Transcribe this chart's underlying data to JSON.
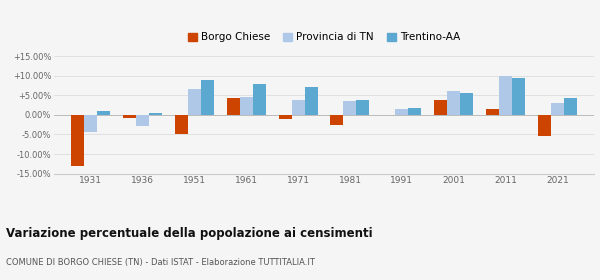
{
  "years": [
    1931,
    1936,
    1951,
    1961,
    1971,
    1981,
    1991,
    2001,
    2011,
    2021
  ],
  "borgo_chiese": [
    -13.0,
    -0.8,
    -4.8,
    4.2,
    -1.0,
    -2.5,
    0.0,
    3.7,
    1.5,
    -5.5
  ],
  "provincia_tn": [
    -4.5,
    -2.8,
    6.5,
    4.5,
    3.8,
    3.5,
    1.5,
    6.0,
    10.0,
    3.0
  ],
  "trentino_aa": [
    1.0,
    0.4,
    8.8,
    7.8,
    7.0,
    3.8,
    1.8,
    5.5,
    9.5,
    4.2
  ],
  "borgo_color": "#cc4400",
  "provincia_color": "#b0c8e8",
  "trentino_color": "#5ba8d0",
  "bg_color": "#f5f5f5",
  "title": "Variazione percentuale della popolazione ai censimenti",
  "subtitle": "COMUNE DI BORGO CHIESE (TN) - Dati ISTAT - Elaborazione TUTTITALIA.IT",
  "legend_labels": [
    "Borgo Chiese",
    "Provincia di TN",
    "Trentino-AA"
  ],
  "ylim": [
    -15,
    15
  ],
  "yticks": [
    -15,
    -10,
    -5,
    0,
    5,
    10,
    15
  ],
  "ytick_labels": [
    "-15.00%",
    "-10.00%",
    "-5.00%",
    "0.00%",
    "+5.00%",
    "+10.00%",
    "+15.00%"
  ],
  "bar_width": 0.25
}
